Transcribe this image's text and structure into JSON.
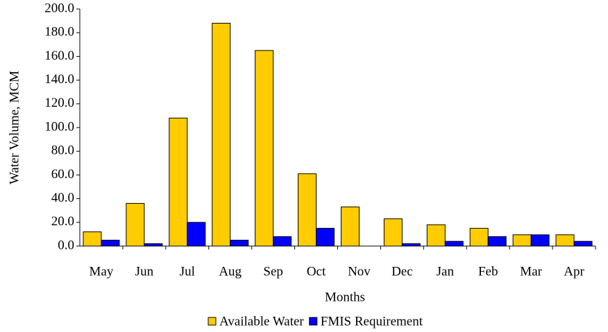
{
  "chart_data": {
    "type": "bar",
    "y_label": "Water Volume, MCM",
    "x_label": "Months",
    "categories": [
      "May",
      "Jun",
      "Jul",
      "Aug",
      "Sep",
      "Oct",
      "Nov",
      "Dec",
      "Jan",
      "Feb",
      "Mar",
      "Apr"
    ],
    "series": [
      {
        "name": "Available Water",
        "color": "#ffcc00",
        "values": [
          12,
          36,
          108,
          188,
          165,
          61,
          33,
          23,
          18,
          15,
          9.5,
          9.5
        ]
      },
      {
        "name": "FMIS Requirement",
        "color": "#0000ff",
        "values": [
          5,
          2,
          20,
          5,
          8,
          15,
          0,
          2,
          4,
          8,
          9.5,
          4
        ]
      }
    ],
    "ylim": [
      0,
      200
    ],
    "yticks": [
      {
        "value": 0,
        "label": "0.0"
      },
      {
        "value": 20,
        "label": "20.0"
      },
      {
        "value": 40,
        "label": "40.0"
      },
      {
        "value": 60,
        "label": "60.0"
      },
      {
        "value": 80,
        "label": "80.0"
      },
      {
        "value": 100,
        "label": "100.0"
      },
      {
        "value": 120,
        "label": "120.0"
      },
      {
        "value": 140,
        "label": "140.0"
      },
      {
        "value": 160,
        "label": "160.0"
      },
      {
        "value": 180,
        "label": "180.0"
      },
      {
        "value": 200,
        "label": "200.0"
      }
    ],
    "legend": "bottom"
  }
}
